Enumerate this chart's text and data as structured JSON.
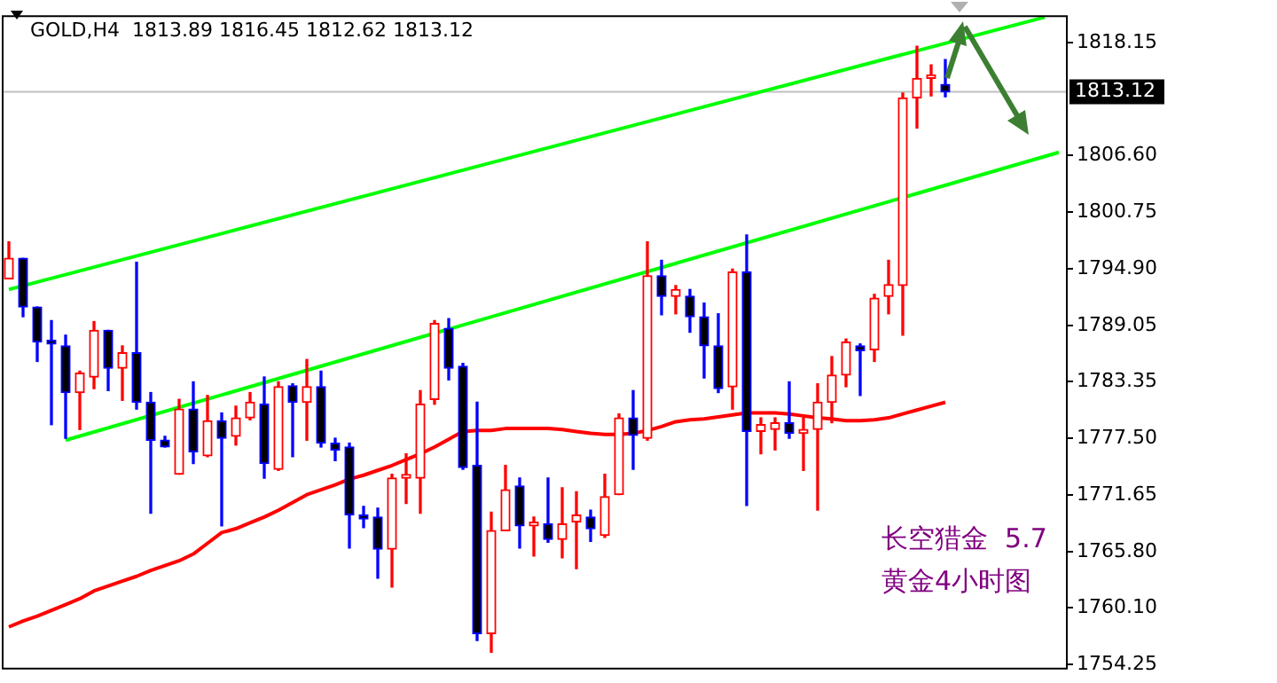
{
  "chart_data": {
    "type": "candlestick",
    "title": "GOLD,H4  1813.89 1816.45 1812.62 1813.12",
    "annotations": [
      "长空猎金  5.7",
      "黄金4小时图"
    ],
    "categories": [
      null,
      null,
      null,
      null,
      null,
      null,
      null,
      null,
      null,
      null,
      null,
      null,
      null,
      null,
      null,
      null,
      null,
      null,
      null,
      null,
      null,
      null,
      null,
      null,
      null,
      null,
      null,
      null,
      null,
      null,
      null,
      null,
      null,
      null,
      null,
      null,
      null,
      null,
      null,
      null,
      null,
      null,
      null,
      null,
      null,
      null,
      null,
      null,
      null,
      null,
      null,
      null,
      null,
      null,
      null,
      null,
      null,
      null,
      null,
      null,
      null,
      null,
      null,
      null,
      null,
      null,
      null,
      null,
      null,
      null,
      null,
      null,
      null,
      null,
      null
    ],
    "ohlc": [
      [
        1793.9,
        1797.7,
        1793.9,
        1796.0
      ],
      [
        1796.0,
        1796.0,
        1790.0,
        1791.0
      ],
      [
        1791.0,
        1791.0,
        1785.4,
        1787.4
      ],
      [
        1787.3,
        1789.6,
        1778.9,
        1787.2
      ],
      [
        1787.0,
        1788.1,
        1777.5,
        1782.2
      ],
      [
        1782.2,
        1784.4,
        1778.4,
        1784.2
      ],
      [
        1783.8,
        1789.5,
        1782.6,
        1788.6
      ],
      [
        1788.6,
        1788.6,
        1782.4,
        1784.7
      ],
      [
        1784.7,
        1787.0,
        1781.4,
        1786.3
      ],
      [
        1786.3,
        1795.6,
        1780.5,
        1781.2
      ],
      [
        1781.2,
        1782.2,
        1769.8,
        1777.3
      ],
      [
        1777.3,
        1777.7,
        1776.6,
        1776.6
      ],
      [
        1773.8,
        1781.5,
        1773.8,
        1780.5
      ],
      [
        1780.5,
        1783.3,
        1774.9,
        1776.1
      ],
      [
        1775.7,
        1781.9,
        1775.6,
        1779.3
      ],
      [
        1779.3,
        1780.1,
        1768.5,
        1777.5
      ],
      [
        1777.7,
        1780.8,
        1776.8,
        1779.6
      ],
      [
        1779.6,
        1782.2,
        1779.4,
        1781.2
      ],
      [
        1781.0,
        1783.8,
        1773.4,
        1774.9
      ],
      [
        1774.3,
        1783.3,
        1774.2,
        1782.8
      ],
      [
        1782.9,
        1783.1,
        1775.6,
        1781.2
      ],
      [
        1781.2,
        1785.6,
        1777.3,
        1782.8
      ],
      [
        1782.8,
        1784.4,
        1776.6,
        1777.0
      ],
      [
        1777.0,
        1777.5,
        1775.2,
        1776.3
      ],
      [
        1776.6,
        1777.0,
        1766.2,
        1769.6
      ],
      [
        1769.6,
        1770.5,
        1768.3,
        1769.2
      ],
      [
        1769.4,
        1770.3,
        1763.1,
        1766.1
      ],
      [
        1766.1,
        1773.8,
        1762.2,
        1773.4
      ],
      [
        1773.4,
        1775.9,
        1770.8,
        1773.5
      ],
      [
        1773.4,
        1782.4,
        1769.8,
        1781.0
      ],
      [
        1781.5,
        1789.6,
        1781.0,
        1789.3
      ],
      [
        1788.8,
        1789.8,
        1783.5,
        1784.7
      ],
      [
        1784.9,
        1785.2,
        1774.3,
        1774.5
      ],
      [
        1774.7,
        1781.2,
        1756.7,
        1757.4
      ],
      [
        1757.4,
        1769.9,
        1755.5,
        1768.0
      ],
      [
        1768.0,
        1774.7,
        1768.0,
        1772.2
      ],
      [
        1772.6,
        1773.4,
        1766.2,
        1768.5
      ],
      [
        1768.5,
        1769.4,
        1765.4,
        1768.6
      ],
      [
        1768.7,
        1773.4,
        1766.8,
        1767.1
      ],
      [
        1767.1,
        1772.4,
        1765.2,
        1768.7
      ],
      [
        1768.9,
        1772.0,
        1764.1,
        1769.6
      ],
      [
        1769.4,
        1770.1,
        1766.9,
        1768.2
      ],
      [
        1767.5,
        1773.8,
        1767.3,
        1771.5
      ],
      [
        1771.7,
        1780.0,
        1771.7,
        1779.6
      ],
      [
        1779.6,
        1782.4,
        1774.3,
        1777.8
      ],
      [
        1777.5,
        1797.7,
        1777.3,
        1794.2
      ],
      [
        1794.2,
        1795.8,
        1790.2,
        1792.1
      ],
      [
        1792.1,
        1793.2,
        1790.3,
        1792.8
      ],
      [
        1792.1,
        1792.8,
        1788.4,
        1790.0
      ],
      [
        1790.0,
        1791.4,
        1783.7,
        1787.0
      ],
      [
        1787.0,
        1790.3,
        1782.2,
        1782.6
      ],
      [
        1782.8,
        1794.9,
        1780.5,
        1794.6
      ],
      [
        1794.6,
        1798.4,
        1770.6,
        1778.2
      ],
      [
        1778.2,
        1779.6,
        1775.9,
        1778.9
      ],
      [
        1778.4,
        1779.6,
        1776.3,
        1779.1
      ],
      [
        1779.1,
        1783.3,
        1777.5,
        1778.0
      ],
      [
        1778.0,
        1779.6,
        1774.2,
        1778.4
      ],
      [
        1778.4,
        1783.1,
        1770.1,
        1781.2
      ],
      [
        1781.2,
        1785.9,
        1779.1,
        1784.0
      ],
      [
        1784.0,
        1787.7,
        1782.8,
        1787.4
      ],
      [
        1787.0,
        1787.2,
        1781.9,
        1786.5
      ],
      [
        1786.6,
        1792.3,
        1785.4,
        1791.9
      ],
      [
        1792.1,
        1795.8,
        1790.3,
        1793.3
      ],
      [
        1793.2,
        1813.0,
        1788.1,
        1812.5
      ],
      [
        1812.5,
        1817.8,
        1809.4,
        1814.5
      ],
      [
        1814.5,
        1815.9,
        1812.7,
        1814.8
      ],
      [
        1813.89,
        1816.45,
        1812.62,
        1813.12
      ],
      null,
      null,
      null,
      null,
      null,
      null,
      null,
      null
    ],
    "series": [
      {
        "type": "line",
        "color": "#ff0000",
        "values": [
          1758.1,
          1758.7,
          1759.2,
          1759.8,
          1760.4,
          1761.0,
          1761.8,
          1762.3,
          1762.8,
          1763.3,
          1763.9,
          1764.4,
          1764.9,
          1765.6,
          1766.7,
          1767.8,
          1768.2,
          1768.8,
          1769.4,
          1770.1,
          1770.9,
          1771.7,
          1772.2,
          1772.7,
          1773.3,
          1773.7,
          1774.2,
          1774.7,
          1775.3,
          1775.9,
          1776.6,
          1777.4,
          1778.2,
          1778.3,
          1778.3,
          1778.5,
          1778.5,
          1778.5,
          1778.5,
          1778.4,
          1778.2,
          1778.0,
          1777.9,
          1777.9,
          1778.0,
          1778.3,
          1778.7,
          1779.2,
          1779.4,
          1779.5,
          1779.7,
          1779.9,
          1780.1,
          1780.1,
          1780.1,
          1780.0,
          1779.8,
          1779.6,
          1779.5,
          1779.3,
          1779.3,
          1779.4,
          1779.6,
          1780.0,
          1780.4,
          1780.8,
          1781.2,
          null,
          null,
          null,
          null,
          null,
          null,
          null,
          null
        ]
      },
      {
        "type": "line",
        "color": "#00ff00",
        "values": [
          1792.8,
          null,
          null,
          null,
          null,
          null,
          null,
          null,
          null,
          null,
          null,
          null,
          null,
          null,
          null,
          null,
          null,
          null,
          null,
          null,
          null,
          null,
          null,
          null,
          null,
          null,
          null,
          null,
          null,
          null,
          null,
          null,
          null,
          null,
          null,
          null,
          null,
          null,
          null,
          null,
          null,
          null,
          null,
          null,
          null,
          null,
          null,
          null,
          null,
          null,
          null,
          null,
          null,
          null,
          null,
          null,
          null,
          null,
          null,
          null,
          null,
          null,
          null,
          null,
          null,
          null,
          null,
          null,
          null,
          null,
          null,
          null,
          null,
          1820.8,
          null
        ]
      },
      {
        "type": "line",
        "color": "#00ff00",
        "values": [
          null,
          null,
          null,
          null,
          1777.3,
          null,
          null,
          null,
          null,
          null,
          null,
          null,
          null,
          null,
          null,
          null,
          null,
          null,
          null,
          null,
          null,
          null,
          null,
          null,
          null,
          null,
          null,
          null,
          null,
          null,
          null,
          null,
          null,
          null,
          null,
          null,
          null,
          null,
          null,
          null,
          null,
          null,
          null,
          null,
          null,
          null,
          null,
          null,
          null,
          null,
          null,
          null,
          null,
          null,
          null,
          null,
          null,
          null,
          null,
          null,
          null,
          null,
          null,
          null,
          null,
          null,
          null,
          null,
          null,
          null,
          null,
          null,
          null,
          null,
          1806.9
        ]
      }
    ],
    "ylim": [
      1753.9,
      1821.0
    ],
    "yticks": [
      1818.15,
      {
        "value": 1806.6,
        "label": "1806.60"
      },
      1800.75,
      {
        "value": 1794.9,
        "label": "1794.90"
      },
      1789.05,
      1783.35,
      {
        "value": 1777.5,
        "label": "1777.50"
      },
      1771.65,
      {
        "value": 1765.8,
        "label": "1765.80"
      },
      {
        "value": 1760.1,
        "label": "1760.10"
      },
      1754.25
    ],
    "ref_lines": [
      {
        "axis": "y",
        "value": 1813.12,
        "label": "1813.12",
        "color": "#c0c0c0"
      }
    ],
    "tick_labels": "y",
    "grid": false,
    "legend": false,
    "marker": "none"
  }
}
